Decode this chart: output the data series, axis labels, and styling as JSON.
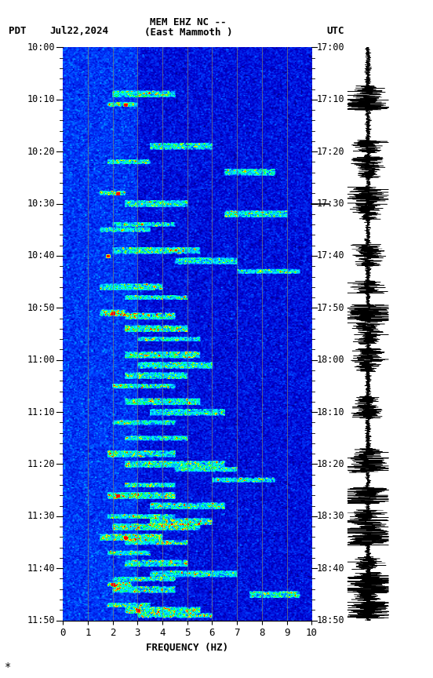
{
  "title_line1": "MEM EHZ NC --",
  "title_line2": "(East Mammoth )",
  "pdt_label": "PDT",
  "date_label": "Jul22,2024",
  "utc_label": "UTC",
  "left_times": [
    "10:00",
    "10:10",
    "10:20",
    "10:30",
    "10:40",
    "10:50",
    "11:00",
    "11:10",
    "11:20",
    "11:30",
    "11:40",
    "11:50"
  ],
  "right_times": [
    "17:00",
    "17:10",
    "17:20",
    "17:30",
    "17:40",
    "17:50",
    "18:00",
    "18:10",
    "18:20",
    "18:30",
    "18:40",
    "18:50"
  ],
  "freq_min": 0,
  "freq_max": 10,
  "freq_ticks": [
    0,
    1,
    2,
    3,
    4,
    5,
    6,
    7,
    8,
    9,
    10
  ],
  "xlabel": "FREQUENCY (HZ)",
  "vertical_lines_x": [
    1,
    2,
    3,
    4,
    5,
    6,
    7,
    8,
    9
  ],
  "vertical_line_color": "#888866",
  "seed": 42,
  "fig_width": 5.52,
  "fig_height": 8.64,
  "dpi": 100
}
